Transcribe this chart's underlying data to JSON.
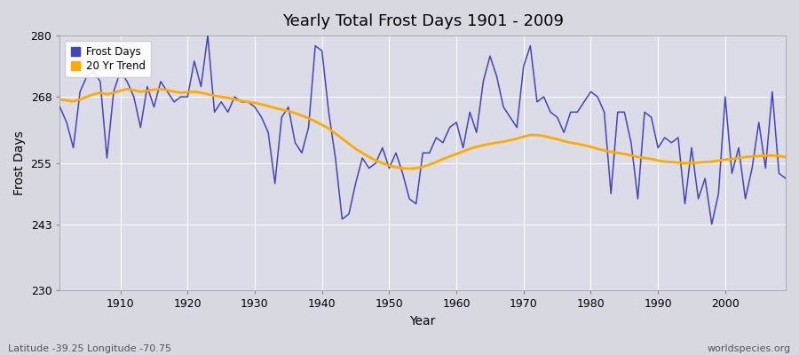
{
  "title": "Yearly Total Frost Days 1901 - 2009",
  "xlabel": "Year",
  "ylabel": "Frost Days",
  "ylim": [
    230,
    280
  ],
  "xlim": [
    1901,
    2009
  ],
  "bg_color": "#d8d8e0",
  "plot_bg_color": "#dcdce8",
  "line_color": "#4444bb",
  "trend_color": "#ffaa00",
  "legend_labels": [
    "Frost Days",
    "20 Yr Trend"
  ],
  "lat_lon_text": "Latitude -39.25 Longitude -70.75",
  "watermark": "worldspecies.org",
  "years": [
    1901,
    1902,
    1903,
    1904,
    1905,
    1906,
    1907,
    1908,
    1909,
    1910,
    1911,
    1912,
    1913,
    1914,
    1915,
    1916,
    1917,
    1918,
    1919,
    1920,
    1921,
    1922,
    1923,
    1924,
    1925,
    1926,
    1927,
    1928,
    1929,
    1930,
    1931,
    1932,
    1933,
    1934,
    1935,
    1936,
    1937,
    1938,
    1939,
    1940,
    1941,
    1942,
    1943,
    1944,
    1945,
    1946,
    1947,
    1948,
    1949,
    1950,
    1951,
    1952,
    1953,
    1954,
    1955,
    1956,
    1957,
    1958,
    1959,
    1960,
    1961,
    1962,
    1963,
    1964,
    1965,
    1966,
    1967,
    1968,
    1969,
    1970,
    1971,
    1972,
    1973,
    1974,
    1975,
    1976,
    1977,
    1978,
    1979,
    1980,
    1981,
    1982,
    1983,
    1984,
    1985,
    1986,
    1987,
    1988,
    1989,
    1990,
    1991,
    1992,
    1993,
    1994,
    1995,
    1996,
    1997,
    1998,
    1999,
    2000,
    2001,
    2002,
    2003,
    2004,
    2005,
    2006,
    2007,
    2008,
    2009
  ],
  "frost_days": [
    266,
    263,
    258,
    269,
    272,
    273,
    271,
    256,
    269,
    273,
    271,
    268,
    262,
    270,
    266,
    271,
    269,
    267,
    268,
    268,
    275,
    270,
    280,
    265,
    267,
    265,
    268,
    267,
    267,
    266,
    264,
    261,
    251,
    264,
    266,
    259,
    257,
    262,
    278,
    277,
    265,
    256,
    244,
    245,
    251,
    256,
    254,
    255,
    258,
    254,
    257,
    253,
    248,
    247,
    257,
    257,
    260,
    259,
    262,
    263,
    258,
    265,
    261,
    271,
    276,
    272,
    266,
    264,
    262,
    274,
    278,
    267,
    268,
    265,
    264,
    261,
    265,
    265,
    267,
    269,
    268,
    265,
    249,
    265,
    265,
    259,
    248,
    265,
    264,
    258,
    260,
    259,
    260,
    247,
    258,
    248,
    252,
    243,
    249,
    268,
    253,
    258,
    248,
    254,
    263,
    254,
    269,
    253,
    252
  ],
  "trend": [
    267.5,
    267.3,
    267.1,
    267.5,
    268.0,
    268.5,
    268.8,
    268.5,
    268.8,
    269.2,
    269.5,
    269.3,
    269.0,
    269.2,
    269.4,
    269.5,
    269.3,
    269.0,
    268.8,
    268.9,
    269.0,
    268.8,
    268.5,
    268.2,
    268.0,
    267.8,
    267.5,
    267.2,
    267.0,
    266.8,
    266.5,
    266.2,
    265.8,
    265.5,
    265.2,
    264.8,
    264.3,
    263.8,
    263.2,
    262.5,
    261.8,
    260.8,
    259.8,
    258.8,
    257.8,
    257.0,
    256.2,
    255.5,
    255.0,
    254.5,
    254.2,
    254.0,
    253.9,
    254.0,
    254.3,
    254.7,
    255.2,
    255.8,
    256.3,
    256.8,
    257.3,
    257.8,
    258.2,
    258.5,
    258.8,
    259.0,
    259.2,
    259.5,
    259.8,
    260.2,
    260.5,
    260.5,
    260.3,
    260.0,
    259.7,
    259.3,
    259.0,
    258.8,
    258.5,
    258.2,
    257.8,
    257.5,
    257.2,
    257.0,
    256.8,
    256.5,
    256.2,
    256.0,
    255.8,
    255.5,
    255.3,
    255.2,
    255.1,
    255.0,
    255.0,
    255.1,
    255.2,
    255.3,
    255.5,
    255.7,
    255.8,
    256.0,
    256.2,
    256.3,
    256.4,
    256.5,
    256.5,
    256.4,
    256.2
  ]
}
